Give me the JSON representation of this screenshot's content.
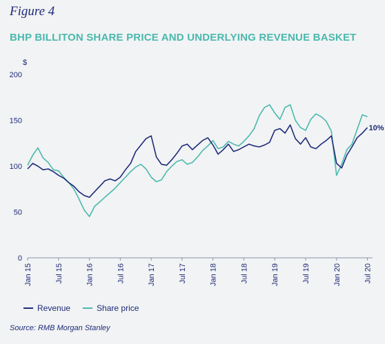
{
  "figure_label": "Figure 4",
  "title": "BHP BILLITON SHARE PRICE AND UNDERLYING REVENUE BASKET",
  "source": "Source: RMB Morgan Stanley",
  "colors": {
    "revenue": "#1e2a78",
    "share_price": "#4ab8ad",
    "text": "#1e2a78",
    "axis": "#8a90a6"
  },
  "chart_data": {
    "type": "line",
    "title": "BHP BILLITON SHARE PRICE AND UNDERLYING REVENUE BASKET",
    "ylabel": "$",
    "ylim": [
      0,
      200
    ],
    "yticks": [
      "0",
      "50",
      "100",
      "150",
      "200"
    ],
    "xlim": [
      0,
      67
    ],
    "xticks": [
      {
        "label": "Jan 15",
        "x": 0
      },
      {
        "label": "Jul 15",
        "x": 6
      },
      {
        "label": "Jan 16",
        "x": 12
      },
      {
        "label": "Jul 16",
        "x": 18
      },
      {
        "label": "Jan 17",
        "x": 24
      },
      {
        "label": "Jul 17",
        "x": 30
      },
      {
        "label": "Jan 18",
        "x": 36
      },
      {
        "label": "Jul 18",
        "x": 42
      },
      {
        "label": "Jan 19",
        "x": 48
      },
      {
        "label": "Jul 19",
        "x": 54
      },
      {
        "label": "Jan 20",
        "x": 60
      },
      {
        "label": "Jul 20",
        "x": 66
      }
    ],
    "annotation": {
      "text": "10%",
      "x": 66,
      "y": 142
    },
    "legend": [
      "Revenue",
      "Share price"
    ],
    "series": [
      {
        "name": "Revenue",
        "x": [
          0,
          1,
          2,
          3,
          4,
          5,
          6,
          7,
          8,
          9,
          10,
          11,
          12,
          13,
          14,
          15,
          16,
          17,
          18,
          19,
          20,
          21,
          22,
          23,
          24,
          25,
          26,
          27,
          28,
          29,
          30,
          31,
          32,
          33,
          34,
          35,
          36,
          37,
          38,
          39,
          40,
          41,
          42,
          43,
          44,
          45,
          46,
          47,
          48,
          49,
          50,
          51,
          52,
          53,
          54,
          55,
          56,
          57,
          58,
          59,
          60,
          61,
          62,
          63,
          64,
          65,
          66
        ],
        "y": [
          97,
          103,
          100,
          96,
          97,
          94,
          90,
          87,
          82,
          78,
          72,
          68,
          66,
          72,
          78,
          84,
          86,
          84,
          88,
          96,
          103,
          116,
          123,
          130,
          133,
          110,
          102,
          101,
          107,
          114,
          122,
          124,
          118,
          123,
          128,
          131,
          123,
          113,
          118,
          124,
          116,
          118,
          121,
          124,
          122,
          121,
          123,
          126,
          139,
          141,
          136,
          145,
          130,
          124,
          131,
          121,
          119,
          124,
          128,
          133,
          103,
          98,
          112,
          121,
          131,
          136,
          142
        ]
      },
      {
        "name": "Share price",
        "x": [
          0,
          1,
          2,
          3,
          4,
          5,
          6,
          7,
          8,
          9,
          10,
          11,
          12,
          13,
          14,
          15,
          16,
          17,
          18,
          19,
          20,
          21,
          22,
          23,
          24,
          25,
          26,
          27,
          28,
          29,
          30,
          31,
          32,
          33,
          34,
          35,
          36,
          37,
          38,
          39,
          40,
          41,
          42,
          43,
          44,
          45,
          46,
          47,
          48,
          49,
          50,
          51,
          52,
          53,
          54,
          55,
          56,
          57,
          58,
          59,
          60,
          61,
          62,
          63,
          64,
          65,
          66
        ],
        "y": [
          101,
          112,
          120,
          109,
          104,
          96,
          95,
          88,
          82,
          75,
          64,
          52,
          45,
          56,
          61,
          66,
          71,
          76,
          82,
          88,
          94,
          99,
          102,
          97,
          88,
          83,
          85,
          94,
          100,
          105,
          107,
          102,
          104,
          110,
          117,
          122,
          128,
          119,
          121,
          127,
          124,
          122,
          127,
          133,
          141,
          155,
          164,
          167,
          158,
          151,
          164,
          167,
          150,
          142,
          139,
          151,
          157,
          154,
          149,
          138,
          90,
          102,
          118,
          124,
          140,
          156,
          154
        ]
      }
    ]
  }
}
